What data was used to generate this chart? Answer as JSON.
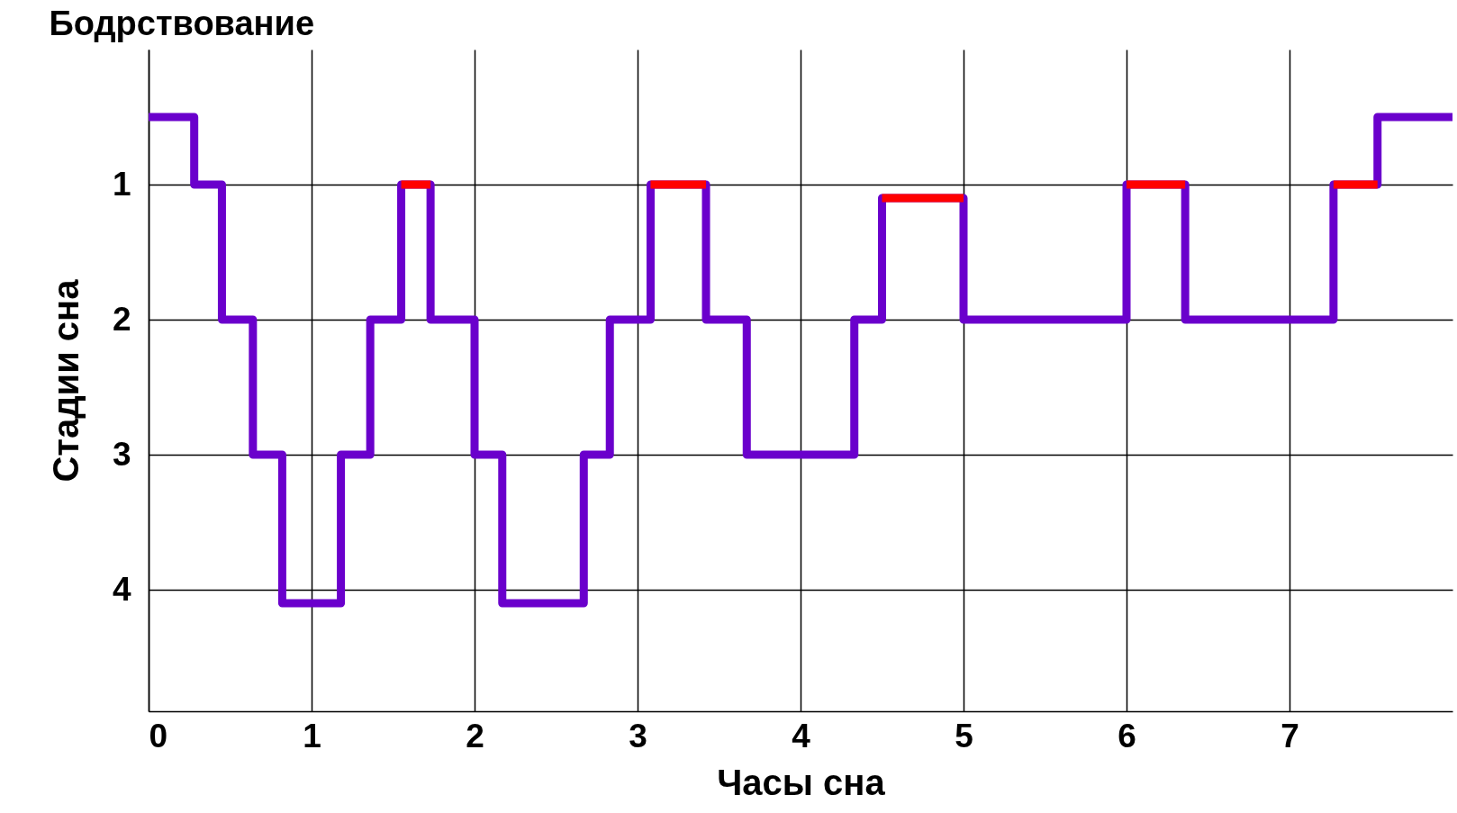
{
  "chart_data": {
    "type": "step",
    "annotations": [
      "Бодрствование"
    ],
    "xlabel": "Часы сна",
    "ylabel": "Стадии сна",
    "xlim": [
      0,
      8
    ],
    "xticks": [
      0,
      1,
      2,
      3,
      4,
      5,
      6,
      7
    ],
    "ylim": [
      4.9,
      0
    ],
    "yticks": [
      1,
      2,
      3,
      4
    ],
    "grid": true,
    "line_style": "solid",
    "series": [
      {
        "color": "#6a00cc",
        "x": [
          0,
          0.28,
          0.45,
          0.64,
          0.82,
          1.18,
          1.36,
          1.55,
          1.73,
          2.0,
          2.17,
          2.67,
          2.83,
          3.08,
          3.42,
          3.67,
          4.33,
          4.5,
          5.0,
          6.0,
          6.36,
          7.27,
          7.54,
          8
        ],
        "values": [
          0.5,
          1,
          2,
          3,
          4.1,
          3,
          2,
          1,
          2,
          3,
          4.1,
          3,
          2,
          1,
          2,
          3,
          2,
          1.1,
          2,
          1,
          2,
          1,
          0.5,
          0.5
        ]
      },
      {
        "color": "#ff0000",
        "x": [
          1.55,
          1.73,
          2.5,
          3.08,
          3.42,
          4,
          4.5,
          5.0,
          5.5,
          6.0,
          6.36,
          7,
          7.27,
          7.54
        ],
        "values": [
          1,
          1,
          null,
          1,
          1,
          null,
          1.1,
          1.1,
          null,
          1,
          1,
          null,
          1,
          1
        ]
      }
    ]
  }
}
